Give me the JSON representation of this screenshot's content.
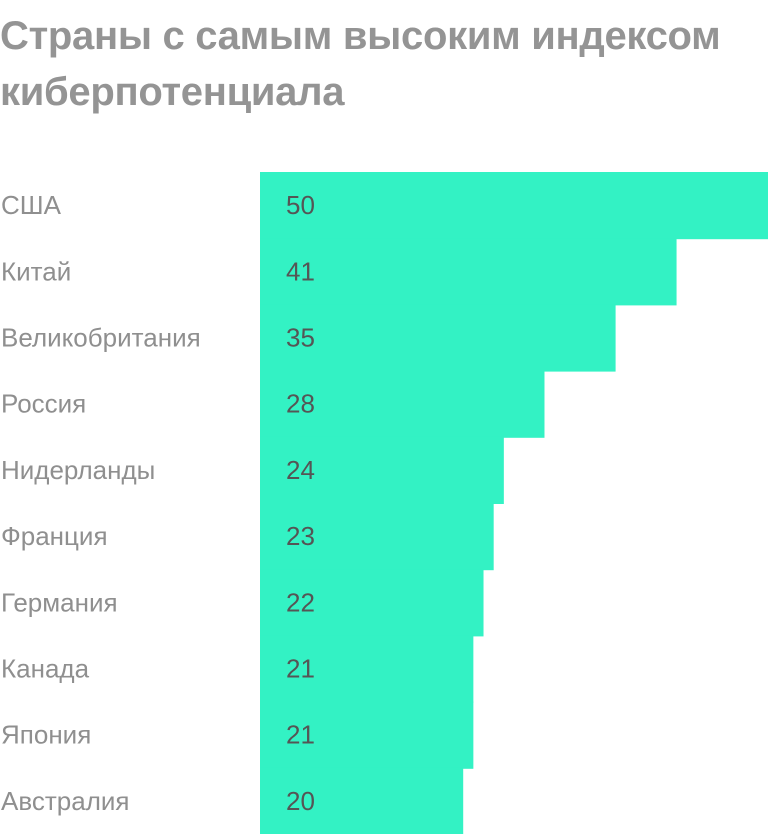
{
  "chart_data": {
    "type": "bar",
    "orientation": "horizontal",
    "title": "Страны с самым высоким индексом киберпотенциала",
    "categories": [
      "США",
      "Китай",
      "Великобритания",
      "Россия",
      "Нидерланды",
      "Франция",
      "Германия",
      "Канада",
      "Япония",
      "Австралия"
    ],
    "values": [
      50,
      41,
      35,
      28,
      24,
      23,
      22,
      21,
      21,
      20
    ],
    "bar_color": "#33f2c4",
    "xlim": [
      0,
      50
    ],
    "grid": false,
    "legend": "none"
  }
}
